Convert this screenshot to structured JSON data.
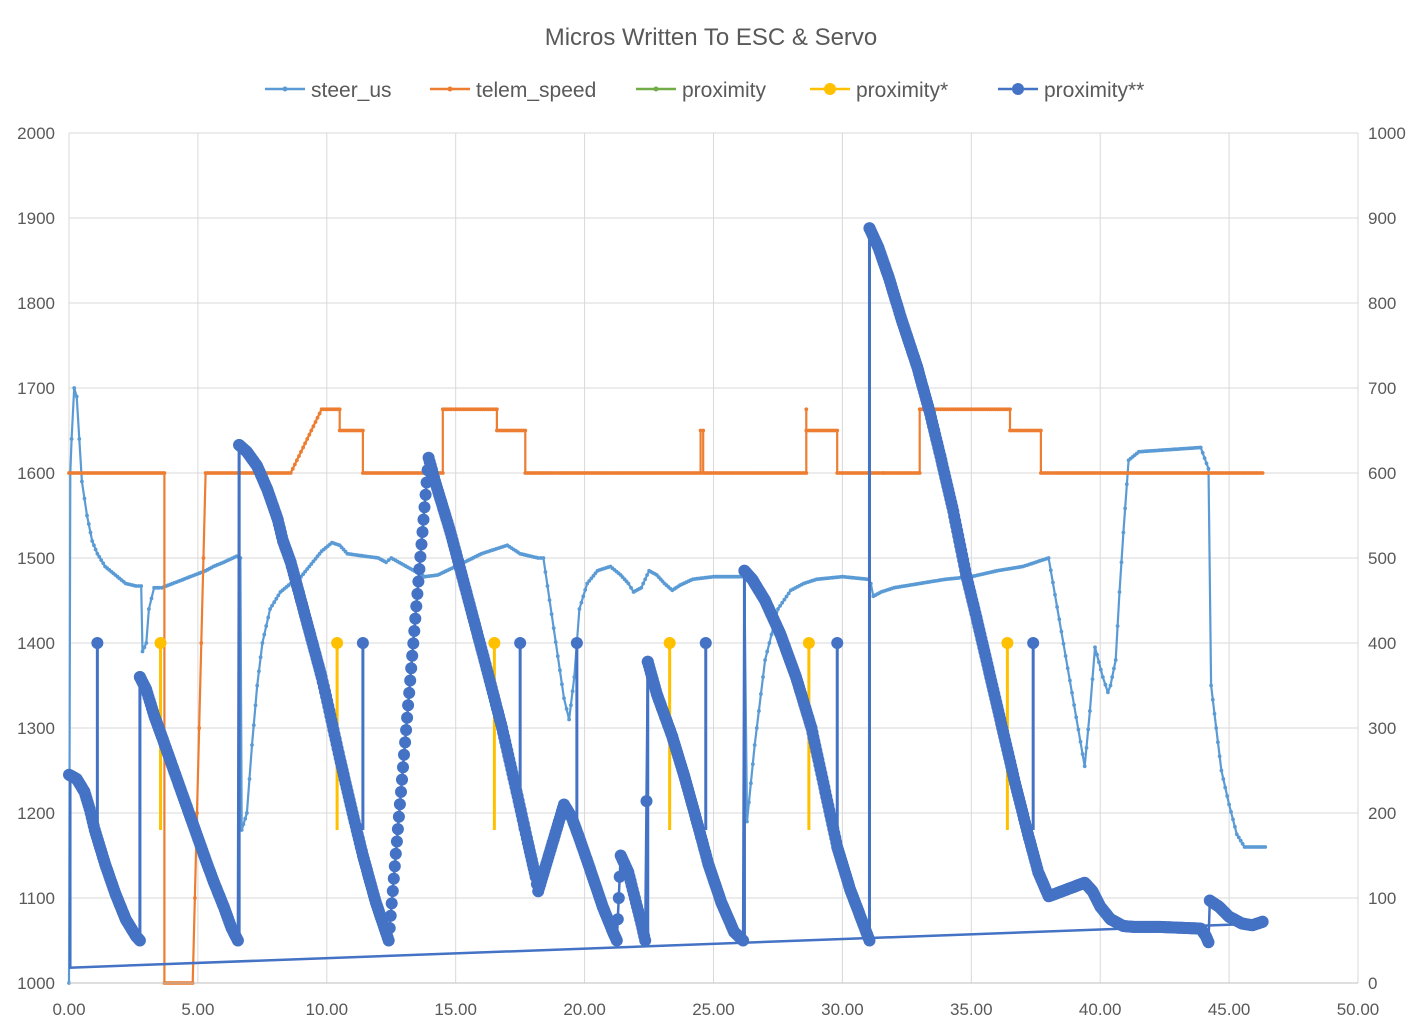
{
  "chart_data": {
    "type": "line",
    "title": "Micros Written To ESC & Servo",
    "legend_position": "top",
    "grid": true,
    "x_axis": {
      "min": 0,
      "max": 50,
      "step": 5,
      "tick_labels": [
        "0.00",
        "5.00",
        "10.00",
        "15.00",
        "20.00",
        "25.00",
        "30.00",
        "35.00",
        "40.00",
        "45.00",
        "50.00"
      ]
    },
    "y_axis_left": {
      "min": 1000,
      "max": 2000,
      "step": 100,
      "tick_labels": [
        "1000",
        "1100",
        "1200",
        "1300",
        "1400",
        "1500",
        "1600",
        "1700",
        "1800",
        "1900",
        "2000"
      ]
    },
    "y_axis_right": {
      "min": 0,
      "max": 1000,
      "step": 100,
      "tick_labels": [
        "0",
        "100",
        "200",
        "300",
        "400",
        "500",
        "600",
        "700",
        "800",
        "900",
        "1000"
      ]
    },
    "series": [
      {
        "name": "steer_us",
        "color": "#5b9bd5",
        "axis": "left",
        "marker": "small",
        "points": [
          [
            0.0,
            1000
          ],
          [
            0.05,
            1600
          ],
          [
            0.1,
            1640
          ],
          [
            0.2,
            1700
          ],
          [
            0.3,
            1690
          ],
          [
            0.4,
            1640
          ],
          [
            0.5,
            1590
          ],
          [
            0.7,
            1550
          ],
          [
            0.9,
            1520
          ],
          [
            1.1,
            1505
          ],
          [
            1.4,
            1490
          ],
          [
            1.8,
            1480
          ],
          [
            2.2,
            1470
          ],
          [
            2.6,
            1467
          ],
          [
            2.8,
            1467
          ],
          [
            2.85,
            1390
          ],
          [
            3.0,
            1400
          ],
          [
            3.1,
            1440
          ],
          [
            3.3,
            1465
          ],
          [
            3.5,
            1465
          ],
          [
            3.6,
            1465
          ],
          [
            5.3,
            1485
          ],
          [
            5.6,
            1490
          ],
          [
            6.0,
            1495
          ],
          [
            6.5,
            1502
          ],
          [
            6.65,
            1500
          ],
          [
            6.7,
            1180
          ],
          [
            6.9,
            1200
          ],
          [
            7.1,
            1280
          ],
          [
            7.3,
            1350
          ],
          [
            7.5,
            1400
          ],
          [
            7.8,
            1440
          ],
          [
            8.2,
            1460
          ],
          [
            8.6,
            1470
          ],
          [
            9.0,
            1478
          ],
          [
            9.8,
            1508
          ],
          [
            10.2,
            1518
          ],
          [
            10.5,
            1515
          ],
          [
            10.8,
            1505
          ],
          [
            11.5,
            1502
          ],
          [
            12.0,
            1500
          ],
          [
            12.3,
            1495
          ],
          [
            12.5,
            1500
          ],
          [
            13.8,
            1478
          ],
          [
            14.3,
            1480
          ],
          [
            15.0,
            1490
          ],
          [
            16.0,
            1505
          ],
          [
            16.5,
            1510
          ],
          [
            17.0,
            1515
          ],
          [
            17.5,
            1505
          ],
          [
            18.2,
            1500
          ],
          [
            18.4,
            1500
          ],
          [
            19.2,
            1335
          ],
          [
            19.4,
            1310
          ],
          [
            19.6,
            1360
          ],
          [
            19.8,
            1440
          ],
          [
            20.1,
            1470
          ],
          [
            20.5,
            1485
          ],
          [
            21.0,
            1490
          ],
          [
            21.4,
            1480
          ],
          [
            21.7,
            1470
          ],
          [
            21.9,
            1460
          ],
          [
            22.2,
            1465
          ],
          [
            22.5,
            1485
          ],
          [
            22.8,
            1480
          ],
          [
            23.1,
            1470
          ],
          [
            23.4,
            1462
          ],
          [
            23.7,
            1468
          ],
          [
            24.2,
            1475
          ],
          [
            25.0,
            1478
          ],
          [
            26.0,
            1478
          ],
          [
            26.2,
            1478
          ],
          [
            26.3,
            1190
          ],
          [
            26.6,
            1280
          ],
          [
            27.0,
            1380
          ],
          [
            27.5,
            1440
          ],
          [
            28.0,
            1462
          ],
          [
            28.5,
            1470
          ],
          [
            29.0,
            1475
          ],
          [
            30.0,
            1478
          ],
          [
            31.0,
            1475
          ],
          [
            31.1,
            1470
          ],
          [
            31.2,
            1455
          ],
          [
            31.5,
            1460
          ],
          [
            32.0,
            1465
          ],
          [
            33.0,
            1470
          ],
          [
            34.0,
            1475
          ],
          [
            35.0,
            1478
          ],
          [
            36.0,
            1485
          ],
          [
            37.0,
            1490
          ],
          [
            37.5,
            1495
          ],
          [
            38.0,
            1500
          ],
          [
            39.4,
            1255
          ],
          [
            39.6,
            1320
          ],
          [
            39.8,
            1395
          ],
          [
            40.1,
            1360
          ],
          [
            40.3,
            1342
          ],
          [
            40.4,
            1350
          ],
          [
            40.6,
            1380
          ],
          [
            40.75,
            1460
          ],
          [
            40.9,
            1530
          ],
          [
            41.1,
            1615
          ],
          [
            41.5,
            1625
          ],
          [
            43.9,
            1630
          ],
          [
            44.2,
            1605
          ],
          [
            44.3,
            1350
          ],
          [
            44.5,
            1300
          ],
          [
            44.7,
            1250
          ],
          [
            45.0,
            1210
          ],
          [
            45.3,
            1175
          ],
          [
            45.6,
            1160
          ],
          [
            46.4,
            1160
          ]
        ]
      },
      {
        "name": "telem_speed",
        "color": "#ed7d31",
        "axis": "right",
        "marker": "small",
        "points": [
          [
            0.0,
            600
          ],
          [
            3.7,
            600
          ],
          [
            3.7,
            0
          ],
          [
            4.8,
            0
          ],
          [
            5.3,
            600
          ],
          [
            8.6,
            600
          ],
          [
            9.8,
            675
          ],
          [
            10.5,
            675
          ],
          [
            10.5,
            650
          ],
          [
            11.4,
            650
          ],
          [
            11.4,
            600
          ],
          [
            12.6,
            600
          ],
          [
            14.5,
            600
          ],
          [
            14.5,
            675
          ],
          [
            16.6,
            675
          ],
          [
            16.6,
            650
          ],
          [
            17.7,
            650
          ],
          [
            17.7,
            600
          ],
          [
            18.8,
            600
          ],
          [
            19.0,
            600
          ],
          [
            24.5,
            600
          ],
          [
            24.5,
            650
          ],
          [
            24.6,
            650
          ],
          [
            24.6,
            600
          ],
          [
            28.6,
            600
          ],
          [
            28.6,
            675
          ],
          [
            28.6,
            650
          ],
          [
            29.8,
            650
          ],
          [
            29.8,
            600
          ],
          [
            31.6,
            600
          ],
          [
            31.6,
            600
          ],
          [
            33.0,
            600
          ],
          [
            33.0,
            675
          ],
          [
            36.5,
            675
          ],
          [
            36.5,
            650
          ],
          [
            37.7,
            650
          ],
          [
            37.7,
            600
          ],
          [
            38.3,
            600
          ],
          [
            46.3,
            600
          ]
        ]
      },
      {
        "name": "proximity",
        "color": "#70ad47",
        "axis": "right",
        "marker": "small",
        "points": []
      },
      {
        "name": "proximity*",
        "color": "#ffc000",
        "axis": "right",
        "marker": "large",
        "spikes": [
          [
            3.55,
            180,
            400
          ],
          [
            10.4,
            180,
            400
          ],
          [
            16.5,
            180,
            400
          ],
          [
            23.3,
            180,
            400
          ],
          [
            28.7,
            180,
            400
          ],
          [
            36.4,
            180,
            400
          ]
        ]
      },
      {
        "name": "proximity**",
        "color": "#4472c4",
        "axis": "right",
        "marker": "large",
        "points": [
          [
            0.0,
            245
          ],
          [
            0.3,
            240
          ],
          [
            0.6,
            225
          ],
          [
            0.8,
            205
          ],
          [
            1.0,
            180
          ],
          [
            1.4,
            140
          ],
          [
            1.8,
            105
          ],
          [
            2.2,
            75
          ],
          [
            2.6,
            55
          ],
          [
            2.75,
            50
          ],
          [
            2.75,
            360
          ],
          [
            3.0,
            345
          ],
          [
            3.3,
            315
          ],
          [
            3.6,
            290
          ],
          [
            5.3,
            145
          ],
          [
            5.6,
            120
          ],
          [
            6.0,
            90
          ],
          [
            6.3,
            65
          ],
          [
            6.55,
            50
          ],
          [
            6.6,
            633
          ],
          [
            6.9,
            625
          ],
          [
            7.3,
            608
          ],
          [
            7.7,
            580
          ],
          [
            8.1,
            545
          ],
          [
            8.3,
            520
          ],
          [
            8.6,
            495
          ],
          [
            9.8,
            360
          ],
          [
            10.1,
            320
          ],
          [
            10.5,
            265
          ],
          [
            11.0,
            200
          ],
          [
            11.4,
            150
          ],
          [
            11.9,
            95
          ],
          [
            12.4,
            50
          ],
          [
            13.95,
            618
          ],
          [
            14.2,
            590
          ],
          [
            14.8,
            530
          ],
          [
            15.5,
            450
          ],
          [
            16.2,
            370
          ],
          [
            16.8,
            300
          ],
          [
            17.4,
            220
          ],
          [
            17.8,
            165
          ],
          [
            18.1,
            125
          ],
          [
            18.2,
            108
          ],
          [
            19.2,
            210
          ],
          [
            19.5,
            195
          ],
          [
            19.8,
            170
          ],
          [
            20.2,
            135
          ],
          [
            20.7,
            90
          ],
          [
            21.1,
            60
          ],
          [
            21.25,
            50
          ],
          [
            21.4,
            150
          ],
          [
            21.7,
            130
          ],
          [
            21.95,
            100
          ],
          [
            22.2,
            70
          ],
          [
            22.35,
            50
          ],
          [
            22.45,
            378
          ],
          [
            22.8,
            340
          ],
          [
            23.4,
            290
          ],
          [
            23.9,
            240
          ],
          [
            24.4,
            185
          ],
          [
            24.8,
            140
          ],
          [
            25.3,
            95
          ],
          [
            25.8,
            60
          ],
          [
            26.15,
            50
          ],
          [
            26.2,
            485
          ],
          [
            26.5,
            475
          ],
          [
            27.0,
            450
          ],
          [
            27.6,
            410
          ],
          [
            28.2,
            360
          ],
          [
            28.8,
            300
          ],
          [
            29.3,
            230
          ],
          [
            29.8,
            160
          ],
          [
            30.3,
            110
          ],
          [
            30.8,
            70
          ],
          [
            31.05,
            50
          ],
          [
            31.05,
            888
          ],
          [
            31.4,
            865
          ],
          [
            31.8,
            830
          ],
          [
            32.3,
            780
          ],
          [
            32.9,
            725
          ],
          [
            33.4,
            670
          ],
          [
            33.8,
            620
          ],
          [
            34.3,
            555
          ],
          [
            34.8,
            480
          ],
          [
            35.2,
            430
          ],
          [
            35.7,
            365
          ],
          [
            36.2,
            300
          ],
          [
            36.7,
            235
          ],
          [
            37.2,
            175
          ],
          [
            37.6,
            130
          ],
          [
            38.0,
            102
          ],
          [
            39.4,
            118
          ],
          [
            39.7,
            108
          ],
          [
            40.0,
            90
          ],
          [
            40.4,
            75
          ],
          [
            40.9,
            67
          ],
          [
            41.3,
            66
          ],
          [
            42.3,
            66
          ],
          [
            43.9,
            64
          ],
          [
            44.1,
            55
          ],
          [
            44.2,
            48
          ],
          [
            44.25,
            97
          ],
          [
            44.6,
            90
          ],
          [
            45.0,
            78
          ],
          [
            45.5,
            70
          ],
          [
            45.9,
            68
          ],
          [
            46.3,
            72
          ],
          [
            46.3,
            72
          ]
        ],
        "long_lines": [
          [
            0.0,
            18,
            46.3,
            70
          ],
          [
            0.05,
            18,
            0.05,
            240
          ]
        ],
        "spikes": [
          [
            1.1,
            180,
            400
          ],
          [
            2.75,
            50,
            360
          ],
          [
            6.6,
            50,
            633
          ],
          [
            11.4,
            180,
            400
          ],
          [
            17.5,
            180,
            400
          ],
          [
            19.7,
            180,
            400
          ],
          [
            22.45,
            50,
            378
          ],
          [
            24.7,
            180,
            400
          ],
          [
            26.2,
            50,
            485
          ],
          [
            29.8,
            180,
            400
          ],
          [
            31.05,
            50,
            888
          ],
          [
            37.4,
            180,
            400
          ]
        ]
      }
    ]
  }
}
